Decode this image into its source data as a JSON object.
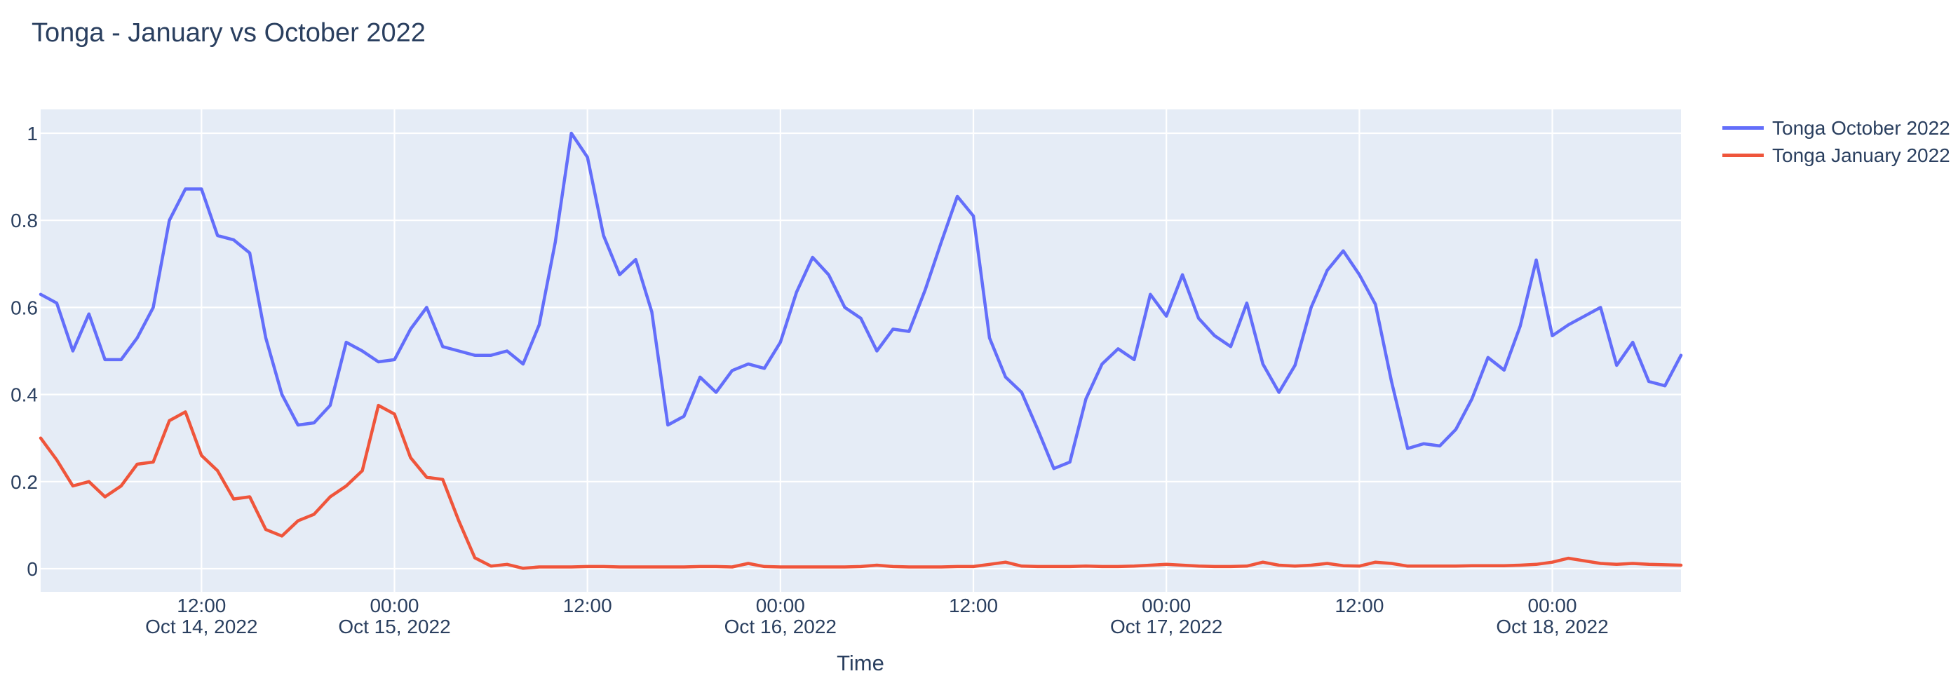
{
  "chart_data": {
    "type": "line",
    "title": "Tonga - January vs October 2022",
    "xlabel": "Time",
    "ylabel": "",
    "x_start": "2022-10-14 02:00",
    "x_end": "2022-10-18 08:00",
    "x_step_hours": 1,
    "y_ticks": [
      0,
      0.2,
      0.4,
      0.6,
      0.8,
      1
    ],
    "y_range": [
      -0.053,
      1.054
    ],
    "grid": true,
    "legend_position": "right-outside-top",
    "plot_bg": "#e5ecf6",
    "grid_color": "#ffffff",
    "text_color": "#2a3f5f",
    "x_ticks": [
      {
        "hour_offset": 10,
        "time": "12:00",
        "date": "Oct 14, 2022"
      },
      {
        "hour_offset": 22,
        "time": "00:00",
        "date": "Oct 15, 2022"
      },
      {
        "hour_offset": 34,
        "time": "12:00",
        "date": ""
      },
      {
        "hour_offset": 46,
        "time": "00:00",
        "date": "Oct 16, 2022"
      },
      {
        "hour_offset": 58,
        "time": "12:00",
        "date": ""
      },
      {
        "hour_offset": 70,
        "time": "00:00",
        "date": "Oct 17, 2022"
      },
      {
        "hour_offset": 82,
        "time": "12:00",
        "date": ""
      },
      {
        "hour_offset": 94,
        "time": "00:00",
        "date": "Oct 18, 2022"
      }
    ],
    "series": [
      {
        "name": "Tonga October 2022",
        "color": "#636efa",
        "values": [
          0.63,
          0.61,
          0.5,
          0.585,
          0.48,
          0.48,
          0.53,
          0.6,
          0.8,
          0.872,
          0.872,
          0.765,
          0.755,
          0.725,
          0.53,
          0.4,
          0.33,
          0.335,
          0.375,
          0.52,
          0.5,
          0.475,
          0.48,
          0.55,
          0.6,
          0.51,
          0.5,
          0.49,
          0.49,
          0.5,
          0.47,
          0.56,
          0.75,
          1.0,
          0.945,
          0.765,
          0.675,
          0.71,
          0.59,
          0.33,
          0.35,
          0.44,
          0.405,
          0.455,
          0.47,
          0.46,
          0.52,
          0.635,
          0.715,
          0.675,
          0.6,
          0.575,
          0.5,
          0.55,
          0.545,
          0.64,
          0.75,
          0.855,
          0.81,
          0.53,
          0.44,
          0.405,
          0.32,
          0.23,
          0.245,
          0.39,
          0.47,
          0.505,
          0.48,
          0.63,
          0.58,
          0.675,
          0.575,
          0.535,
          0.51,
          0.61,
          0.47,
          0.405,
          0.467,
          0.6,
          0.685,
          0.73,
          0.675,
          0.607,
          0.43,
          0.276,
          0.287,
          0.282,
          0.32,
          0.39,
          0.485,
          0.456,
          0.557,
          0.709,
          0.535,
          0.56,
          0.58,
          0.6,
          0.467,
          0.52,
          0.43,
          0.42,
          0.49
        ]
      },
      {
        "name": "Tonga January 2022",
        "color": "#ef553b",
        "values": [
          0.3,
          0.25,
          0.19,
          0.2,
          0.165,
          0.19,
          0.24,
          0.245,
          0.34,
          0.36,
          0.26,
          0.225,
          0.16,
          0.165,
          0.09,
          0.075,
          0.11,
          0.125,
          0.165,
          0.19,
          0.225,
          0.375,
          0.355,
          0.255,
          0.21,
          0.205,
          0.11,
          0.025,
          0.006,
          0.01,
          0.001,
          0.004,
          0.004,
          0.004,
          0.005,
          0.005,
          0.004,
          0.004,
          0.004,
          0.004,
          0.004,
          0.005,
          0.005,
          0.004,
          0.012,
          0.005,
          0.004,
          0.004,
          0.004,
          0.004,
          0.004,
          0.005,
          0.008,
          0.005,
          0.004,
          0.004,
          0.004,
          0.005,
          0.005,
          0.01,
          0.015,
          0.006,
          0.005,
          0.005,
          0.005,
          0.006,
          0.005,
          0.005,
          0.006,
          0.008,
          0.01,
          0.008,
          0.006,
          0.005,
          0.005,
          0.006,
          0.015,
          0.008,
          0.006,
          0.008,
          0.012,
          0.007,
          0.006,
          0.015,
          0.012,
          0.006,
          0.006,
          0.006,
          0.006,
          0.007,
          0.007,
          0.007,
          0.008,
          0.01,
          0.015,
          0.024,
          0.018,
          0.012,
          0.01,
          0.012,
          0.01,
          0.009,
          0.008
        ]
      }
    ]
  }
}
